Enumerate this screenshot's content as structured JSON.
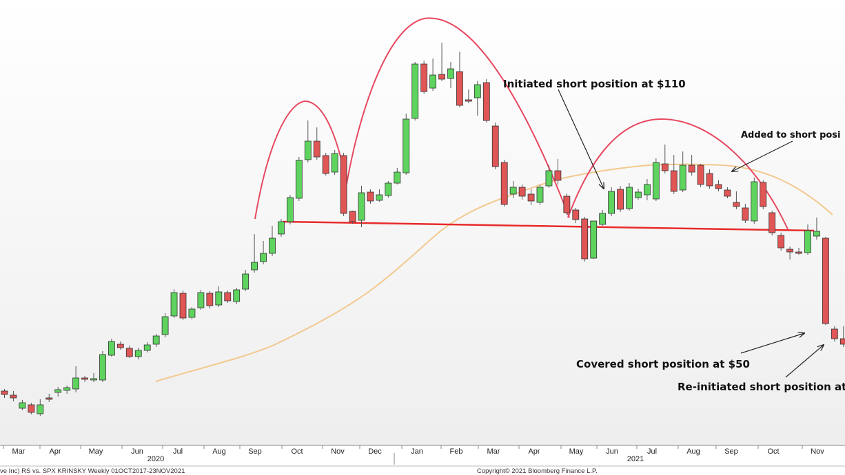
{
  "chart_data": {
    "type": "candlestick",
    "title": "",
    "xlabel": "",
    "ylabel": "",
    "months": [
      "Mar",
      "Apr",
      "May",
      "Jun",
      "Jul",
      "Aug",
      "Sep",
      "Oct",
      "Nov",
      "Dec",
      "Jan",
      "Feb",
      "Mar",
      "Apr",
      "May",
      "Jun",
      "Jul",
      "Aug",
      "Sep",
      "Oct",
      "Nov"
    ],
    "years": [
      "2020",
      "2021"
    ],
    "annotations": [
      "Initiated short position at $110",
      "Added to short posi",
      "Covered short position at $50",
      "Re-initiated short position at $"
    ],
    "footer": {
      "left": "ve Inc) RS vs. SPX KRINSKY  Weekly 01OCT2017-23NOV2021",
      "right": "Copyright© 2021 Bloomberg Finance L.P."
    },
    "colors": {
      "up": "#5ed35e",
      "down": "#e05555",
      "pattern": "#e8475f",
      "neckline": "#e82a2a",
      "moving_average": "#f2c98e"
    },
    "candles": [
      [
        568,
        573,
        578,
        565
      ],
      [
        574,
        578,
        583,
        568
      ],
      [
        593,
        585,
        596,
        581
      ],
      [
        588,
        599,
        602,
        585
      ],
      [
        601,
        588,
        604,
        580
      ],
      [
        578,
        578,
        584,
        572
      ],
      [
        570,
        566,
        576,
        562
      ],
      [
        567,
        563,
        572,
        560
      ],
      [
        565,
        549,
        570,
        532
      ],
      [
        549,
        550,
        555,
        546
      ],
      [
        551,
        550,
        555,
        542
      ],
      [
        552,
        515,
        555,
        510
      ],
      [
        516,
        496,
        518,
        492
      ],
      [
        500,
        505,
        508,
        496
      ],
      [
        506,
        518,
        520,
        502
      ],
      [
        518,
        509,
        522,
        505
      ],
      [
        509,
        501,
        512,
        497
      ],
      [
        500,
        488,
        504,
        485
      ],
      [
        486,
        460,
        490,
        455
      ],
      [
        459,
        425,
        462,
        420
      ],
      [
        426,
        462,
        465,
        422
      ],
      [
        461,
        449,
        464,
        446
      ],
      [
        447,
        425,
        450,
        421
      ],
      [
        426,
        444,
        448,
        423
      ],
      [
        443,
        424,
        446,
        416
      ],
      [
        425,
        437,
        440,
        422
      ],
      [
        438,
        421,
        442,
        418
      ],
      [
        420,
        398,
        423,
        392
      ],
      [
        392,
        381,
        396,
        340
      ],
      [
        380,
        368,
        384,
        350
      ],
      [
        368,
        346,
        372,
        328
      ],
      [
        340,
        322,
        344,
        318
      ],
      [
        322,
        287,
        326,
        283
      ],
      [
        288,
        233,
        292,
        228
      ],
      [
        232,
        205,
        236,
        175
      ],
      [
        205,
        228,
        232,
        185
      ],
      [
        226,
        252,
        255,
        222
      ],
      [
        250,
        223,
        254,
        218
      ],
      [
        226,
        310,
        314,
        222
      ],
      [
        307,
        322,
        325,
        306
      ],
      [
        320,
        280,
        330,
        270
      ],
      [
        279,
        292,
        296,
        275
      ],
      [
        291,
        283,
        293,
        275
      ],
      [
        284,
        266,
        287,
        263
      ],
      [
        266,
        250,
        268,
        244
      ],
      [
        251,
        173,
        254,
        165
      ],
      [
        172,
        93,
        175,
        90
      ],
      [
        93,
        133,
        136,
        88
      ],
      [
        128,
        109,
        132,
        85
      ],
      [
        108,
        115,
        118,
        62
      ],
      [
        114,
        100,
        128,
        90
      ],
      [
        104,
        153,
        156,
        75
      ],
      [
        145,
        145,
        150,
        130
      ],
      [
        142,
        123,
        168,
        118
      ],
      [
        120,
        175,
        178,
        115
      ],
      [
        183,
        242,
        246,
        178
      ],
      [
        236,
        297,
        300,
        232
      ],
      [
        282,
        272,
        288,
        263
      ],
      [
        272,
        285,
        290,
        268
      ],
      [
        282,
        292,
        298,
        275
      ],
      [
        294,
        272,
        298,
        268
      ],
      [
        270,
        248,
        273,
        240
      ],
      [
        248,
        262,
        268,
        231
      ],
      [
        285,
        309,
        312,
        281
      ],
      [
        305,
        319,
        324,
        302
      ],
      [
        318,
        376,
        380,
        315
      ],
      [
        375,
        321,
        376,
        325
      ],
      [
        326,
        310,
        328,
        305
      ],
      [
        310,
        278,
        314,
        272
      ],
      [
        275,
        304,
        308,
        270
      ],
      [
        303,
        272,
        306,
        266
      ],
      [
        287,
        279,
        290,
        274
      ],
      [
        283,
        268,
        291,
        260
      ],
      [
        289,
        236,
        292,
        230
      ],
      [
        238,
        248,
        252,
        210
      ],
      [
        248,
        278,
        282,
        225
      ],
      [
        276,
        240,
        279,
        220
      ],
      [
        240,
        250,
        255,
        225
      ],
      [
        240,
        268,
        272,
        238
      ],
      [
        252,
        270,
        274,
        246
      ],
      [
        268,
        274,
        278,
        262
      ],
      [
        276,
        285,
        288,
        272
      ],
      [
        294,
        300,
        304,
        278
      ],
      [
        302,
        320,
        324,
        296
      ],
      [
        321,
        264,
        325,
        258
      ],
      [
        265,
        300,
        304,
        262
      ],
      [
        309,
        338,
        342,
        306
      ],
      [
        342,
        360,
        364,
        338
      ],
      [
        362,
        366,
        377,
        358
      ],
      [
        366,
        366,
        370,
        360
      ],
      [
        367,
        335,
        370,
        326
      ],
      [
        343,
        336,
        348,
        316
      ],
      [
        346,
        470,
        472,
        344
      ],
      [
        478,
        492,
        496,
        474
      ],
      [
        492,
        500,
        504,
        474
      ],
      [
        502,
        511,
        514,
        498
      ]
    ]
  }
}
